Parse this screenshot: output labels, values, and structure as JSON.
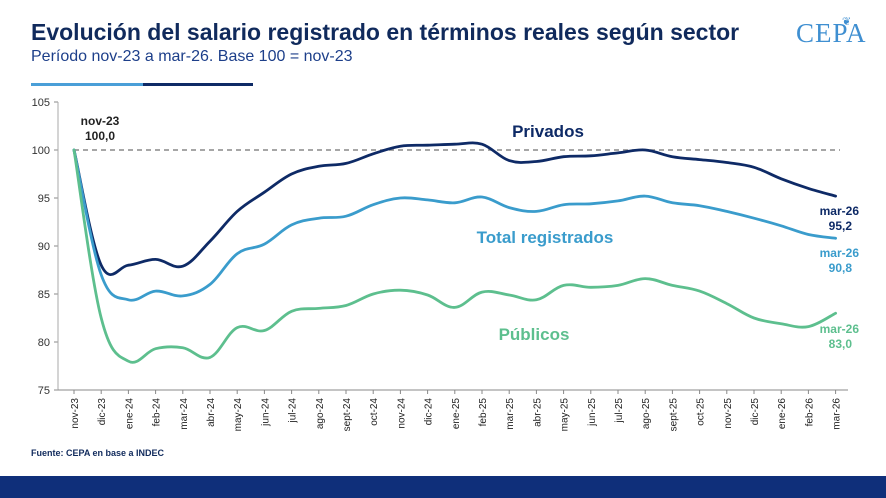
{
  "header": {
    "title": "Evolución del salario registrado en términos reales según sector",
    "subtitle": "Período nov-23 a mar-26. Base 100 = nov-23",
    "logo": "CEPA"
  },
  "footer": {
    "source": "Fuente: CEPA en base a INDEC"
  },
  "colors": {
    "privados": "#0e2a66",
    "total": "#3a9ccc",
    "publicos": "#5dbf8e",
    "reference": "#888888"
  },
  "chart_data": {
    "type": "line",
    "x": [
      "nov-23",
      "dic-23",
      "ene-24",
      "feb-24",
      "mar-24",
      "abr-24",
      "may-24",
      "jun-24",
      "jul-24",
      "ago-24",
      "sept-24",
      "oct-24",
      "nov-24",
      "dic-24",
      "ene-25",
      "feb-25",
      "mar-25",
      "abr-25",
      "may-25",
      "jun-25",
      "jul-25",
      "ago-25",
      "sept-25",
      "oct-25",
      "nov-25",
      "dic-25",
      "ene-26",
      "feb-26",
      "mar-26"
    ],
    "ylim": [
      75,
      105
    ],
    "yticks": [
      75,
      80,
      85,
      90,
      95,
      100,
      105
    ],
    "reference_line": 100,
    "series": [
      {
        "name": "Privados",
        "key": "privados",
        "values": [
          100,
          88.0,
          88.0,
          88.6,
          87.9,
          90.5,
          93.6,
          95.6,
          97.5,
          98.3,
          98.6,
          99.6,
          100.4,
          100.5,
          100.6,
          100.6,
          98.9,
          98.8,
          99.3,
          99.4,
          99.7,
          100.0,
          99.3,
          99.0,
          98.7,
          98.2,
          97.0,
          96.0,
          95.2
        ]
      },
      {
        "name": "Total registrados",
        "key": "total",
        "values": [
          100,
          87.0,
          84.4,
          85.3,
          84.8,
          86.0,
          89.2,
          90.2,
          92.2,
          92.9,
          93.1,
          94.3,
          95.0,
          94.8,
          94.5,
          95.1,
          94.0,
          93.6,
          94.3,
          94.4,
          94.7,
          95.2,
          94.5,
          94.2,
          93.6,
          92.9,
          92.1,
          91.2,
          90.8
        ]
      },
      {
        "name": "Públicos",
        "key": "publicos",
        "values": [
          100,
          82.5,
          78.0,
          79.3,
          79.4,
          78.4,
          81.5,
          81.2,
          83.2,
          83.5,
          83.8,
          85.0,
          85.4,
          84.9,
          83.6,
          85.2,
          84.9,
          84.4,
          85.9,
          85.7,
          85.9,
          86.6,
          85.9,
          85.3,
          84.0,
          82.5,
          81.9,
          81.6,
          83.0
        ]
      }
    ],
    "annotations": {
      "start": {
        "period": "nov-23",
        "value": "100,0"
      },
      "privados_end": {
        "period": "mar-26",
        "value": "95,2"
      },
      "total_end": {
        "period": "mar-26",
        "value": "90,8"
      },
      "publicos_end": {
        "period": "mar-26",
        "value": "83,0"
      }
    }
  }
}
